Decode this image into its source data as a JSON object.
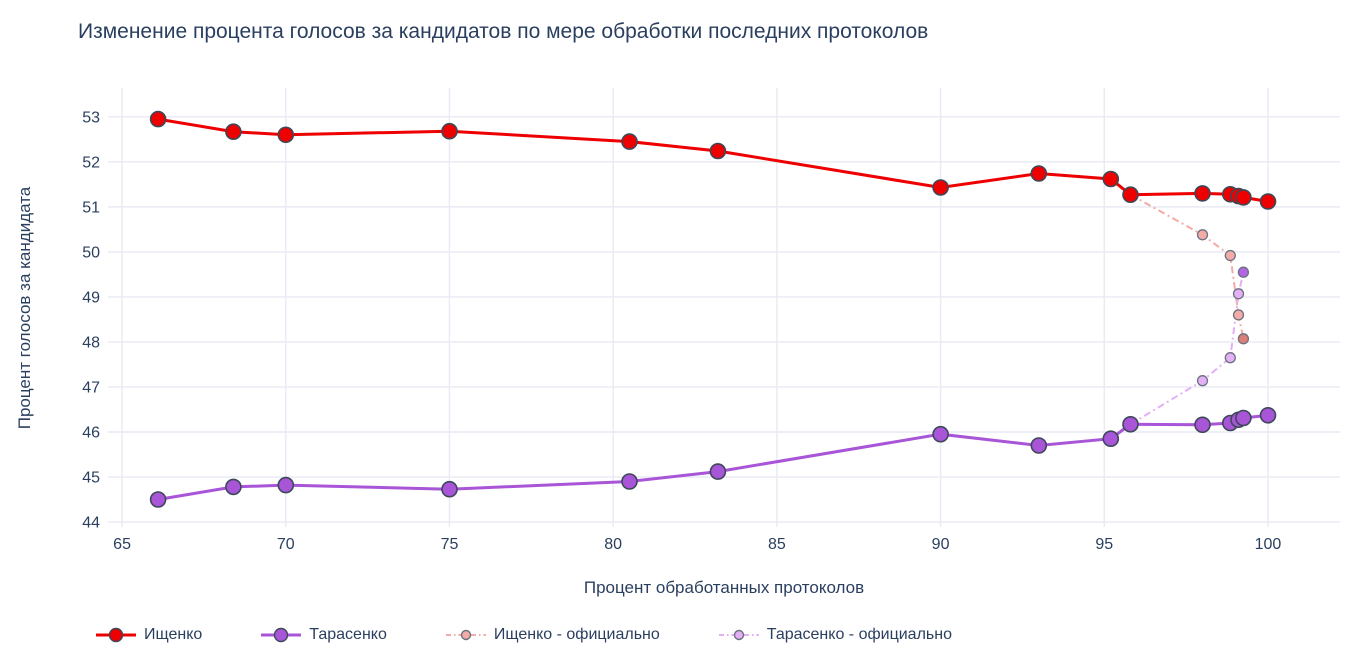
{
  "title": "Изменение процента голосов за кандидатов по мере обработки последних протоколов",
  "chart_data": {
    "type": "line",
    "title": "Изменение процента голосов за кандидатов по мере обработки последних протоколов",
    "xlabel": "Процент обработанных протоколов",
    "ylabel": "Процент голосов за кандидата",
    "x_range": [
      64.57,
      102.2
    ],
    "y_range": [
      43.89,
      53.64
    ],
    "x_ticks": [
      65,
      70,
      75,
      80,
      85,
      90,
      95,
      100
    ],
    "y_ticks": [
      44,
      45,
      46,
      47,
      48,
      49,
      50,
      51,
      52,
      53
    ],
    "grid": true,
    "legend_position": "bottom",
    "colors": {
      "grid": "#e8eaf4",
      "text": "#2a3f5f",
      "marker_edge": "#3d4858",
      "official_marker_edge": "#6b7280"
    },
    "series": [
      {
        "name": "Ищенко",
        "color": "#ee0000",
        "dash": "solid",
        "marker_size": 7.5,
        "x": [
          66.1,
          68.4,
          70,
          75,
          80.5,
          83.2,
          90,
          93,
          95.2,
          95.8,
          98,
          98.85,
          99.1,
          99.25,
          100
        ],
        "y": [
          52.95,
          52.67,
          52.6,
          52.68,
          52.45,
          52.24,
          51.43,
          51.74,
          51.62,
          51.27,
          51.3,
          51.28,
          51.24,
          51.21,
          51.12
        ]
      },
      {
        "name": "Тарасенко",
        "color": "#a855d8",
        "dash": "solid",
        "marker_size": 7.5,
        "x": [
          66.1,
          68.4,
          70,
          75,
          80.5,
          83.2,
          90,
          93,
          95.2,
          95.8,
          98,
          98.85,
          99.1,
          99.25,
          100
        ],
        "y": [
          44.5,
          44.78,
          44.82,
          44.73,
          44.9,
          45.12,
          45.95,
          45.7,
          45.85,
          46.17,
          46.16,
          46.2,
          46.27,
          46.31,
          46.37
        ]
      },
      {
        "name": "Ищенко - официально",
        "color": "#f2aba6",
        "dash": "dashdot",
        "marker_size": 5,
        "last_marker_color": "#dc7f78",
        "x": [
          95.8,
          98,
          98.85,
          99.1,
          99.25
        ],
        "y": [
          51.27,
          50.38,
          49.92,
          48.6,
          48.07
        ]
      },
      {
        "name": "Тарасенко - официально",
        "color": "#e3b0f5",
        "dash": "dashdot",
        "marker_size": 5,
        "last_marker_color": "#b364e3",
        "x": [
          95.8,
          98,
          98.85,
          99.1,
          99.25
        ],
        "y": [
          46.17,
          47.14,
          47.65,
          49.07,
          49.55
        ]
      }
    ]
  }
}
